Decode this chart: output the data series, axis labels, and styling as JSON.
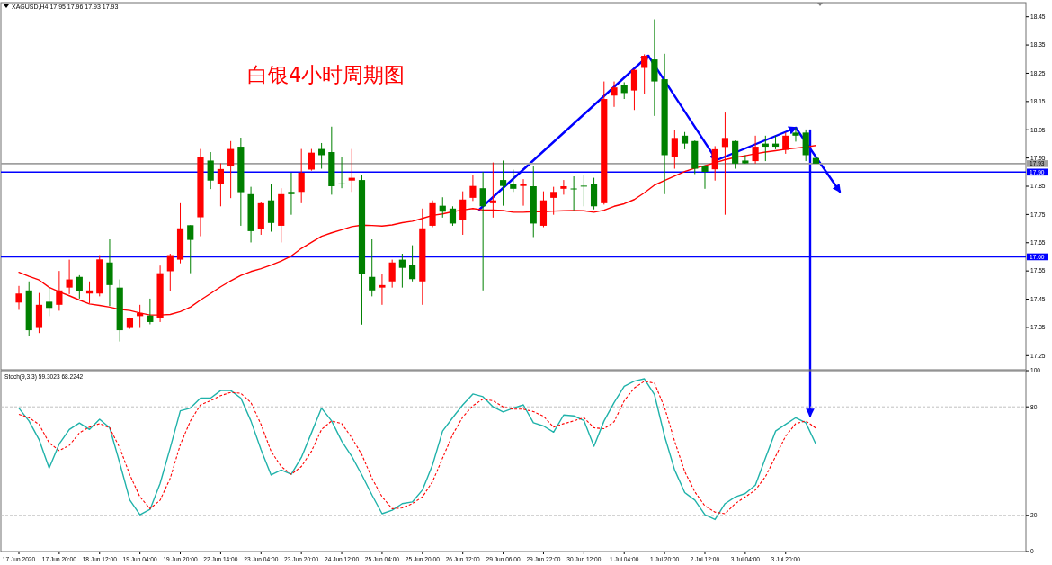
{
  "chart_data": [
    {
      "type": "candlestick",
      "title": "白银4小时周期图",
      "subtitle": "XAGUSD,H4 17.95 17.96 17.93 17.93",
      "categories": [
        null,
        null,
        null,
        null,
        null,
        null,
        null,
        null,
        null,
        null,
        null,
        null,
        null,
        null,
        null,
        null,
        null,
        null,
        null,
        null,
        null,
        null,
        null,
        null,
        null,
        null,
        null,
        null,
        null,
        null,
        null,
        null,
        null,
        null,
        null,
        null,
        null,
        null,
        null,
        null,
        null,
        null,
        null,
        null,
        null,
        null,
        null,
        null,
        null,
        null,
        null,
        null,
        null,
        null,
        null,
        null,
        null,
        null,
        null,
        null,
        null,
        null,
        null,
        null,
        null,
        null,
        null,
        null,
        null,
        null,
        null,
        null,
        null,
        null,
        null,
        null,
        null,
        null,
        null,
        null
      ],
      "ohlc": [
        [
          17.438,
          17.497,
          17.412,
          17.47
        ],
        [
          17.481,
          17.513,
          17.321,
          17.34
        ],
        [
          17.348,
          17.472,
          17.33,
          17.43
        ],
        [
          17.441,
          17.49,
          17.39,
          17.419
        ],
        [
          17.43,
          17.55,
          17.409,
          17.481
        ],
        [
          17.491,
          17.59,
          17.468,
          17.52
        ],
        [
          17.529,
          17.535,
          17.452,
          17.479
        ],
        [
          17.47,
          17.513,
          17.436,
          17.481
        ],
        [
          17.47,
          17.606,
          17.46,
          17.591
        ],
        [
          17.58,
          17.662,
          17.426,
          17.5
        ],
        [
          17.491,
          17.52,
          17.3,
          17.34
        ],
        [
          17.348,
          17.385,
          17.345,
          17.382
        ],
        [
          17.39,
          17.43,
          17.348,
          17.401
        ],
        [
          17.392,
          17.452,
          17.361,
          17.369
        ],
        [
          17.382,
          17.569,
          17.369,
          17.542
        ],
        [
          17.549,
          17.611,
          17.479,
          17.606
        ],
        [
          17.59,
          17.79,
          17.577,
          17.701
        ],
        [
          17.712,
          17.712,
          17.542,
          17.66
        ],
        [
          17.74,
          17.982,
          17.673,
          17.952
        ],
        [
          17.941,
          17.971,
          17.84,
          17.87
        ],
        [
          17.859,
          17.931,
          17.779,
          17.911
        ],
        [
          17.92,
          18.01,
          17.808,
          17.982
        ],
        [
          17.99,
          18.022,
          17.71,
          17.829
        ],
        [
          17.822,
          17.848,
          17.651,
          17.691
        ],
        [
          17.699,
          17.795,
          17.678,
          17.79
        ],
        [
          17.8,
          17.859,
          17.689,
          17.72
        ],
        [
          17.71,
          17.843,
          17.651,
          17.822
        ],
        [
          17.83,
          17.898,
          17.749,
          17.822
        ],
        [
          17.83,
          17.982,
          17.79,
          17.898
        ],
        [
          17.909,
          17.982,
          17.905,
          17.969
        ],
        [
          17.982,
          18.003,
          17.912,
          17.96
        ],
        [
          17.971,
          18.061,
          17.82,
          17.85
        ],
        [
          17.86,
          17.952,
          17.843,
          17.858
        ],
        [
          17.87,
          17.982,
          17.83,
          17.88
        ],
        [
          17.872,
          17.891,
          17.36,
          17.54
        ],
        [
          17.529,
          17.662,
          17.46,
          17.481
        ],
        [
          17.491,
          17.54,
          17.43,
          17.5
        ],
        [
          17.513,
          17.59,
          17.491,
          17.58
        ],
        [
          17.59,
          17.611,
          17.491,
          17.561
        ],
        [
          17.571,
          17.641,
          17.513,
          17.521
        ],
        [
          17.513,
          17.771,
          17.43,
          17.701
        ],
        [
          17.71,
          17.8,
          17.705,
          17.79
        ],
        [
          17.781,
          17.811,
          17.739,
          17.76
        ],
        [
          17.771,
          17.779,
          17.71,
          17.718
        ],
        [
          17.731,
          17.832,
          17.678,
          17.803
        ],
        [
          17.809,
          17.891,
          17.798,
          17.851
        ],
        [
          17.843,
          17.901,
          17.481,
          17.779
        ],
        [
          17.79,
          17.934,
          17.739,
          17.8
        ],
        [
          17.872,
          17.941,
          17.781,
          17.851
        ],
        [
          17.859,
          17.909,
          17.83,
          17.841
        ],
        [
          17.851,
          17.875,
          17.781,
          17.859
        ],
        [
          17.85,
          17.92,
          17.67,
          17.718
        ],
        [
          17.71,
          17.832,
          17.705,
          17.8
        ],
        [
          17.809,
          17.848,
          17.749,
          17.83
        ],
        [
          17.841,
          17.872,
          17.82,
          17.85
        ],
        [
          17.842,
          17.885,
          17.765,
          17.84
        ],
        [
          17.852,
          17.891,
          17.779,
          17.85
        ],
        [
          17.859,
          17.88,
          17.768,
          17.779
        ],
        [
          17.79,
          18.221,
          17.785,
          18.159
        ],
        [
          18.171,
          18.221,
          18.131,
          18.2
        ],
        [
          18.208,
          18.218,
          18.159,
          18.18
        ],
        [
          18.189,
          18.265,
          18.12,
          18.262
        ],
        [
          18.269,
          18.317,
          18.178,
          18.312
        ],
        [
          18.299,
          18.441,
          18.099,
          18.221
        ],
        [
          18.229,
          18.319,
          17.822,
          17.96
        ],
        [
          17.952,
          18.049,
          17.912,
          18.021
        ],
        [
          18.029,
          18.042,
          17.981,
          18.001
        ],
        [
          18.01,
          18.012,
          17.893,
          17.912
        ],
        [
          17.923,
          17.925,
          17.841,
          17.901
        ],
        [
          17.91,
          17.992,
          17.87,
          17.981
        ],
        [
          17.989,
          18.111,
          17.749,
          18.021
        ],
        [
          18.01,
          18.012,
          17.912,
          17.93
        ],
        [
          17.941,
          17.96,
          17.93,
          17.931
        ],
        [
          17.939,
          18.029,
          17.93,
          17.99
        ],
        [
          18.001,
          18.029,
          17.939,
          17.99
        ],
        [
          18.001,
          18.029,
          17.981,
          17.99
        ],
        [
          17.979,
          18.04,
          17.965,
          18.029
        ],
        [
          18.04,
          18.058,
          18.008,
          18.029
        ],
        [
          18.04,
          18.051,
          17.939,
          17.96
        ],
        [
          17.95,
          17.96,
          17.93,
          17.93
        ]
      ],
      "colors": [
        "#ff0000",
        "#008000",
        "#ff0000",
        "#008000",
        "#ff0000",
        "#ff0000",
        "#008000",
        "#ff0000",
        "#ff0000",
        "#008000",
        "#008000",
        "#ff0000",
        "#ff0000",
        "#008000",
        "#ff0000",
        "#ff0000",
        "#ff0000",
        "#008000",
        "#ff0000",
        "#008000",
        "#ff0000",
        "#ff0000",
        "#008000",
        "#008000",
        "#ff0000",
        "#008000",
        "#ff0000",
        "#008000",
        "#ff0000",
        "#ff0000",
        "#008000",
        "#008000",
        "#008000",
        "#ff0000",
        "#008000",
        "#008000",
        "#ff0000",
        "#ff0000",
        "#008000",
        "#008000",
        "#ff0000",
        "#ff0000",
        "#008000",
        "#008000",
        "#ff0000",
        "#ff0000",
        "#008000",
        "#ff0000",
        "#008000",
        "#008000",
        "#ff0000",
        "#008000",
        "#ff0000",
        "#ff0000",
        "#ff0000",
        "#008000",
        "#008000",
        "#008000",
        "#ff0000",
        "#ff0000",
        "#008000",
        "#ff0000",
        "#ff0000",
        "#008000",
        "#008000",
        "#ff0000",
        "#008000",
        "#008000",
        "#008000",
        "#ff0000",
        "#ff0000",
        "#008000",
        "#008000",
        "#ff0000",
        "#008000",
        "#008000",
        "#ff0000",
        "#008000",
        "#008000",
        "#008000"
      ],
      "series": [
        {
          "type": "line",
          "color": "#ff0000",
          "values": [
            17.545,
            17.531,
            17.518,
            17.492,
            17.476,
            17.462,
            17.447,
            17.433,
            17.428,
            17.422,
            17.414,
            17.41,
            17.401,
            17.394,
            17.394,
            17.396,
            17.406,
            17.422,
            17.447,
            17.47,
            17.494,
            17.515,
            17.534,
            17.548,
            17.558,
            17.571,
            17.585,
            17.603,
            17.63,
            17.651,
            17.673,
            17.685,
            17.696,
            17.707,
            17.712,
            17.711,
            17.709,
            17.713,
            17.721,
            17.726,
            17.736,
            17.747,
            17.752,
            17.76,
            17.766,
            17.771,
            17.766,
            17.766,
            17.764,
            17.758,
            17.758,
            17.76,
            17.76,
            17.762,
            17.763,
            17.764,
            17.763,
            17.758,
            17.765,
            17.779,
            17.788,
            17.803,
            17.827,
            17.854,
            17.87,
            17.886,
            17.902,
            17.914,
            17.923,
            17.933,
            17.944,
            17.952,
            17.958,
            17.965,
            17.971,
            17.976,
            17.981,
            17.985,
            17.989,
            17.994
          ]
        }
      ],
      "ylim": [
        17.2,
        18.5
      ],
      "yticks": [
        17.25,
        17.35,
        17.45,
        17.55,
        17.65,
        17.75,
        17.85,
        17.95,
        18.05,
        18.15,
        18.25,
        18.35,
        18.45
      ],
      "ref_lines": [
        {
          "axis": "y",
          "value": 17.93,
          "label": "17.93",
          "color": "#a0a0a0"
        },
        {
          "axis": "y",
          "value": 17.9,
          "label": "17.90",
          "color": "#0000ff"
        },
        {
          "axis": "y",
          "value": 17.6,
          "label": "17.60",
          "color": "#0000ff"
        }
      ]
    },
    {
      "type": "line",
      "title": "Stoch(9,3,3) 59.3023 68.2242",
      "categories": [
        "17 Jun 2020",
        null,
        null,
        null,
        "17 Jun 20:00",
        null,
        null,
        null,
        "18 Jun 12:00",
        null,
        null,
        null,
        "19 Jun 04:00",
        null,
        null,
        null,
        "19 Jun 20:00",
        null,
        null,
        null,
        "22 Jun 14:00",
        null,
        null,
        null,
        "23 Jun 04:00",
        null,
        null,
        null,
        "23 Jun 20:00",
        null,
        null,
        null,
        "24 Jun 12:00",
        null,
        null,
        null,
        "25 Jun 04:00",
        null,
        null,
        null,
        "25 Jun 20:00",
        null,
        null,
        null,
        "26 Jun 12:00",
        null,
        null,
        null,
        "29 Jun 06:00",
        null,
        null,
        null,
        "29 Jun 22:00",
        null,
        null,
        null,
        "30 Jun 12:00",
        null,
        null,
        null,
        "1 Jul 04:00",
        null,
        null,
        null,
        "1 Jul 20:00",
        null,
        null,
        null,
        "2 Jul 12:00",
        null,
        null,
        null,
        "3 Jul 04:00",
        null,
        null,
        null,
        "3 Jul 20:00",
        null,
        null,
        null
      ],
      "series": [
        {
          "color": "#20b2aa",
          "line_style": "solid",
          "values": [
            79.3,
            72.2,
            61.9,
            46.1,
            59.5,
            67.5,
            71.1,
            67.5,
            73.1,
            68.4,
            48.9,
            28.4,
            20.3,
            23.3,
            37.7,
            57.3,
            77.8,
            79.3,
            84.8,
            84.8,
            89.0,
            89.0,
            84.8,
            72.2,
            56.3,
            42.3,
            45.1,
            42.7,
            52.0,
            65.6,
            79.3,
            72.2,
            61.0,
            52.6,
            42.3,
            31.2,
            20.9,
            22.8,
            26.5,
            27.4,
            34.0,
            47.9,
            66.6,
            74.0,
            81.1,
            87.1,
            85.6,
            80.0,
            77.2,
            79.3,
            81.1,
            71.2,
            69.4,
            66.0,
            75.5,
            75.0,
            72.5,
            58.2,
            72.2,
            82.4,
            91.4,
            94.2,
            95.5,
            86.7,
            63.8,
            45.1,
            32.6,
            28.4,
            20.3,
            17.7,
            26.5,
            30.2,
            32.1,
            36.7,
            51.7,
            66.6,
            70.3,
            74.0,
            71.2,
            59.3
          ]
        },
        {
          "color": "#ff0000",
          "line_style": "dotted",
          "values": [
            75.9,
            74.0,
            70.3,
            60.1,
            55.8,
            58.7,
            65.6,
            68.8,
            70.7,
            68.4,
            57.3,
            42.3,
            30.2,
            23.7,
            28.4,
            40.5,
            59.1,
            72.2,
            81.1,
            83.4,
            86.2,
            88.0,
            87.5,
            82.4,
            70.3,
            55.4,
            47.0,
            42.7,
            47.0,
            55.4,
            67.5,
            72.2,
            70.7,
            62.9,
            53.5,
            40.5,
            30.2,
            23.7,
            24.1,
            26.5,
            30.2,
            38.6,
            51.7,
            64.7,
            74.4,
            80.6,
            84.3,
            83.4,
            80.0,
            78.7,
            78.7,
            77.4,
            74.8,
            68.8,
            70.7,
            72.2,
            74.0,
            68.4,
            67.9,
            71.8,
            83.4,
            90.4,
            94.2,
            93.1,
            79.6,
            61.0,
            44.2,
            33.0,
            25.2,
            21.8,
            20.9,
            26.5,
            30.2,
            34.0,
            41.4,
            52.6,
            63.8,
            70.7,
            72.2,
            68.2
          ]
        }
      ],
      "ylim": [
        0,
        100
      ],
      "yticks": [
        0,
        20,
        80,
        100
      ],
      "ref_lines": [
        {
          "axis": "y",
          "value": 80,
          "color": "#c0c0c0",
          "line_style": "dotted"
        },
        {
          "axis": "y",
          "value": 20,
          "color": "#c0c0c0",
          "line_style": "dotted"
        }
      ]
    }
  ]
}
